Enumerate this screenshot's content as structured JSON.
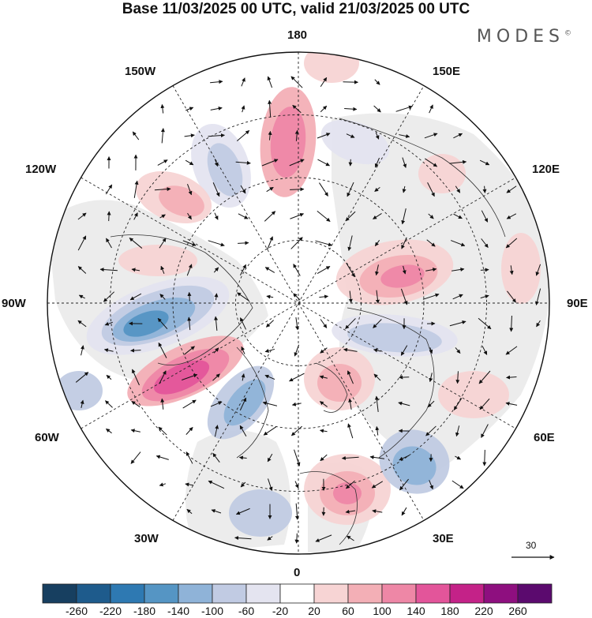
{
  "title": "Base 11/03/2025 00 UTC, valid 21/03/2025 00 UTC",
  "brand": "MODES",
  "brand_mark": "©",
  "longitude_labels": {
    "top": "180",
    "bottom": "0",
    "left": "90W",
    "right": "90E",
    "upper_left": "150W",
    "upper_right": "150E",
    "mid_upper_left": "120W",
    "mid_upper_right": "120E",
    "mid_lower_left": "60W",
    "mid_lower_right": "60E",
    "lower_left": "30W",
    "lower_right": "30E"
  },
  "reference_vector": {
    "value": "30"
  },
  "colorbar": {
    "ticks": [
      "-260",
      "-220",
      "-180",
      "-140",
      "-100",
      "-60",
      "-20",
      "20",
      "60",
      "100",
      "140",
      "180",
      "220",
      "260"
    ],
    "colors": [
      "#173f60",
      "#1e5b8c",
      "#2e79b2",
      "#5595c4",
      "#8fb3d8",
      "#c1cbe3",
      "#e4e4f0",
      "#ffffff",
      "#f7d4d4",
      "#f3afb6",
      "#ee87a6",
      "#e3559a",
      "#c42288",
      "#8e0f7f",
      "#5b0a6e"
    ]
  },
  "map_colors": {
    "land": "#ececec",
    "ocean": "#ffffff",
    "outline": "#000000"
  }
}
